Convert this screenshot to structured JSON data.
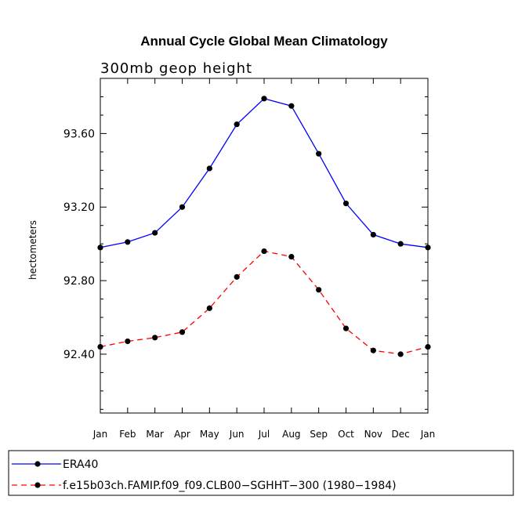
{
  "chart_data": {
    "type": "line",
    "title": "Annual Cycle Global Mean Climatology",
    "subtitle": "300mb geop height",
    "xlabel": "",
    "ylabel": "hectometers",
    "categories": [
      "Jan",
      "Feb",
      "Mar",
      "Apr",
      "May",
      "Jun",
      "Jul",
      "Aug",
      "Sep",
      "Oct",
      "Nov",
      "Dec",
      "Jan"
    ],
    "ylim": [
      92.08,
      93.9
    ],
    "yticks": [
      92.4,
      92.8,
      93.2,
      93.6
    ],
    "ytick_labels": [
      "92.40",
      "92.80",
      "93.20",
      "93.60"
    ],
    "yminor_step": 0.1,
    "grid": false,
    "legend_position": "bottom",
    "series": [
      {
        "name": "ERA40",
        "color": "#0000ff",
        "style": "solid",
        "values": [
          92.98,
          93.01,
          93.06,
          93.2,
          93.41,
          93.65,
          93.79,
          93.75,
          93.49,
          93.22,
          93.05,
          93.0,
          92.98
        ]
      },
      {
        "name": "f.e15b03ch.FAMIP.f09_f09.CLB00−SGHHT−300 (1980−1984)",
        "color": "#ff0000",
        "style": "dashed",
        "values": [
          92.44,
          92.47,
          92.49,
          92.52,
          92.65,
          92.82,
          92.96,
          92.93,
          92.75,
          92.54,
          92.42,
          92.4,
          92.44
        ]
      }
    ]
  }
}
